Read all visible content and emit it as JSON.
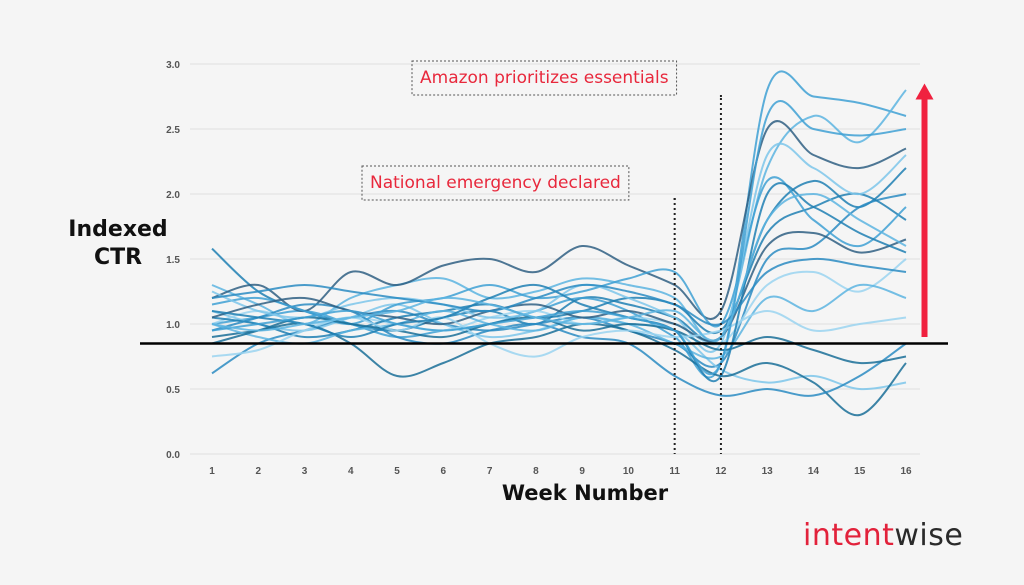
{
  "chart_data": {
    "type": "line",
    "ylabel_line1": "Indexed",
    "ylabel_line2": "CTR",
    "xlabel": "Week Number",
    "x": [
      1,
      2,
      3,
      4,
      5,
      6,
      7,
      8,
      9,
      10,
      11,
      12,
      13,
      14,
      15,
      16
    ],
    "xlim": [
      1,
      16
    ],
    "ylim": [
      0,
      3.0
    ],
    "yticks": [
      "0.0",
      "0.5",
      "1.0",
      "1.5",
      "2.0",
      "2.5",
      "3.0"
    ],
    "xticks": [
      "1",
      "2",
      "3",
      "4",
      "5",
      "6",
      "7",
      "8",
      "9",
      "10",
      "11",
      "12",
      "13",
      "14",
      "15",
      "16"
    ],
    "grid": true,
    "baseline_value": 0.85,
    "colors": {
      "lines": [
        "#1f7fb3",
        "#2a8bc2",
        "#3ea0d4",
        "#5cb4e0",
        "#7cc6ea",
        "#1a6e98",
        "#2f5f82",
        "#9ad4f0"
      ],
      "annotation": "#e8283c",
      "baseline": "#000000"
    },
    "annotations": [
      {
        "text": "National emergency declared",
        "x": 11
      },
      {
        "text": "Amazon prioritizes essentials",
        "x": 12
      }
    ],
    "arrow": {
      "color": "#f0213f",
      "x": 16.4,
      "from": 0.9,
      "to": 2.85
    },
    "series": [
      {
        "values": [
          1.58,
          1.25,
          1.1,
          1.0,
          0.95,
          1.05,
          1.1,
          1.0,
          1.2,
          1.15,
          1.05,
          0.9,
          1.8,
          2.1,
          1.9,
          2.2
        ]
      },
      {
        "values": [
          0.62,
          0.85,
          0.95,
          1.05,
          1.1,
          1.0,
          0.95,
          1.0,
          1.05,
          0.95,
          0.85,
          0.7,
          1.5,
          1.6,
          1.9,
          2.0
        ]
      },
      {
        "values": [
          1.0,
          1.05,
          1.1,
          1.0,
          0.9,
          0.95,
          1.0,
          1.1,
          1.2,
          1.1,
          0.9,
          0.7,
          2.8,
          2.75,
          2.7,
          2.6
        ]
      },
      {
        "values": [
          1.3,
          1.15,
          1.0,
          1.2,
          1.3,
          1.35,
          1.2,
          1.25,
          1.35,
          1.3,
          1.2,
          0.9,
          2.2,
          2.6,
          2.4,
          2.8
        ]
      },
      {
        "values": [
          1.1,
          1.0,
          0.95,
          1.05,
          1.15,
          1.0,
          0.9,
          0.95,
          1.05,
          1.0,
          0.95,
          0.65,
          0.55,
          0.6,
          0.5,
          0.55
        ]
      },
      {
        "values": [
          0.9,
          0.95,
          1.0,
          0.85,
          0.6,
          0.7,
          0.85,
          0.9,
          1.0,
          0.95,
          0.8,
          0.6,
          0.7,
          0.55,
          0.3,
          0.7
        ]
      },
      {
        "values": [
          1.2,
          1.3,
          1.1,
          1.4,
          1.3,
          1.45,
          1.5,
          1.4,
          1.6,
          1.45,
          1.3,
          1.1,
          2.5,
          2.3,
          2.2,
          2.35
        ]
      },
      {
        "values": [
          1.0,
          1.1,
          1.0,
          1.05,
          1.0,
          0.95,
          1.05,
          1.1,
          1.0,
          1.05,
          1.0,
          0.85,
          1.3,
          1.4,
          1.25,
          1.5
        ]
      },
      {
        "values": [
          1.05,
          1.0,
          0.9,
          0.95,
          1.05,
          1.1,
          1.15,
          1.05,
          1.1,
          1.2,
          1.15,
          0.95,
          1.7,
          1.9,
          2.0,
          1.8
        ]
      },
      {
        "values": [
          0.95,
          1.05,
          1.15,
          1.1,
          0.9,
          0.85,
          0.95,
          1.0,
          0.9,
          0.85,
          0.6,
          0.45,
          0.5,
          0.45,
          0.6,
          0.85
        ]
      },
      {
        "values": [
          1.15,
          1.2,
          1.1,
          1.0,
          1.15,
          1.2,
          1.3,
          1.2,
          1.25,
          1.35,
          1.4,
          1.0,
          2.1,
          1.8,
          1.6,
          1.9
        ]
      },
      {
        "values": [
          1.0,
          0.9,
          0.85,
          0.95,
          1.0,
          1.1,
          1.0,
          0.95,
          1.05,
          1.0,
          0.85,
          0.75,
          1.2,
          1.1,
          1.3,
          1.2
        ]
      },
      {
        "values": [
          1.25,
          1.1,
          1.05,
          1.15,
          1.2,
          1.15,
          1.05,
          1.1,
          1.3,
          1.2,
          1.05,
          0.85,
          2.3,
          2.2,
          2.0,
          2.3
        ]
      },
      {
        "values": [
          0.85,
          0.95,
          1.05,
          1.0,
          0.95,
          0.9,
          1.0,
          1.05,
          0.95,
          1.0,
          0.95,
          0.8,
          0.9,
          0.8,
          0.7,
          0.75
        ]
      },
      {
        "values": [
          1.05,
          1.15,
          1.2,
          1.1,
          1.05,
          1.0,
          1.1,
          1.15,
          1.05,
          1.1,
          1.0,
          0.9,
          1.6,
          1.7,
          1.55,
          1.65
        ]
      },
      {
        "values": [
          0.75,
          0.8,
          0.95,
          1.05,
          0.95,
          1.05,
          0.85,
          0.75,
          0.9,
          0.95,
          0.9,
          0.95,
          1.1,
          0.95,
          1.0,
          1.05
        ]
      },
      {
        "values": [
          1.1,
          1.05,
          1.0,
          0.9,
          1.0,
          1.05,
          1.2,
          1.3,
          1.15,
          1.05,
          0.95,
          0.6,
          2.0,
          1.9,
          1.7,
          1.55
        ]
      },
      {
        "values": [
          1.2,
          1.25,
          1.3,
          1.25,
          1.2,
          1.15,
          1.1,
          1.2,
          1.3,
          1.25,
          1.15,
          1.0,
          1.4,
          1.5,
          1.45,
          1.4
        ]
      },
      {
        "values": [
          0.95,
          1.0,
          1.05,
          1.1,
          1.0,
          0.95,
          1.0,
          1.05,
          1.1,
          1.05,
          0.95,
          0.7,
          2.6,
          2.5,
          2.45,
          2.5
        ]
      },
      {
        "values": [
          1.0,
          0.95,
          1.0,
          1.05,
          1.1,
          1.2,
          1.15,
          1.05,
          1.0,
          1.05,
          1.1,
          0.9,
          1.8,
          2.0,
          1.8,
          1.6
        ]
      }
    ]
  },
  "brand": {
    "part1": "intent",
    "part2": "wise"
  }
}
